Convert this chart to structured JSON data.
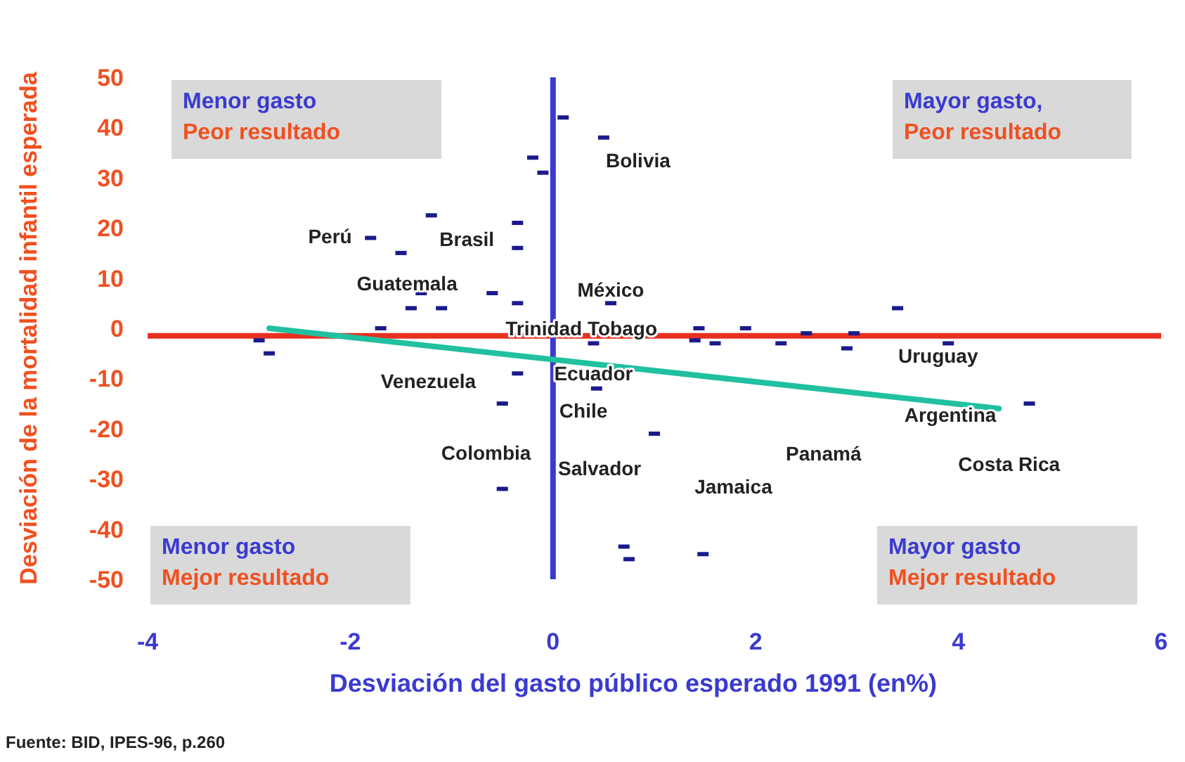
{
  "chart_data": {
    "type": "scatter",
    "xlabel": "Desviación del gasto público esperado 1991 (en%)",
    "ylabel": "Desviación de la mortalidad infantil esperada",
    "xlim": [
      -4,
      6
    ],
    "ylim": [
      -50,
      50
    ],
    "xticks": [
      -4,
      -2,
      0,
      2,
      4,
      6
    ],
    "yticks": [
      -50,
      -40,
      -30,
      -20,
      -10,
      0,
      10,
      20,
      30,
      40,
      50
    ],
    "series": [
      {
        "color": "#1a1a8c",
        "x": [
          0.1,
          -0.2,
          -0.1,
          -1.2,
          -0.35,
          -1.8,
          -1.5,
          -0.35,
          -1.3,
          -0.6,
          -0.35,
          -1.4,
          -1.1,
          -1.7,
          -2.9,
          -2.8,
          0.5,
          0.57,
          0.4,
          1.44,
          1.4,
          1.6,
          1.9,
          2.25,
          2.5,
          2.97,
          2.9,
          3.4,
          3.9,
          -0.35,
          -0.5,
          -0.5,
          0.43,
          1.0,
          4.7,
          0.7,
          0.75,
          1.48
        ],
        "values": [
          42,
          34,
          31,
          22.5,
          21,
          18,
          15,
          16,
          7,
          7,
          5,
          4,
          4,
          0,
          -2.4,
          -5,
          38,
          5,
          -3,
          0,
          -2.4,
          -3,
          0,
          -3,
          -1,
          -1,
          -4,
          4,
          -3,
          -9,
          -15,
          -32,
          -12,
          -21,
          -15,
          -43.5,
          -46,
          -45
        ]
      },
      {
        "type": "line",
        "color": "#20c0a0",
        "x": [
          -2.8,
          4.4
        ],
        "values": [
          0,
          -16
        ]
      }
    ],
    "ref_lines": [
      {
        "axis": "y",
        "value": -1.5,
        "color": "#e83020"
      },
      {
        "axis": "x",
        "value": 0,
        "color": "#3a3ad0"
      }
    ],
    "annotations": [
      "Menor gasto\nPeor resultado",
      "Mayor gasto,\nPeor resultado",
      "Menor gasto\nMejor resultado",
      "Mayor gasto\nMejor resultado",
      "Bolivia",
      "Perú",
      "Brasil",
      "Guatemala",
      "México",
      "Trinidad Tobago",
      "Uruguay",
      "Venezuela",
      "Ecuador",
      "Chile",
      "Argentina",
      "Colombia",
      "Salvador",
      "Panamá",
      "Costa Rica",
      "Jamaica",
      "Fuente: BID, IPES-96, p.260"
    ]
  }
}
